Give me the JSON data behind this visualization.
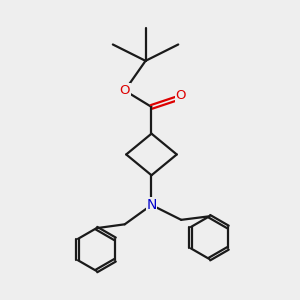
{
  "bg_color": "#eeeeee",
  "bond_color": "#1a1a1a",
  "O_color": "#dd0000",
  "N_color": "#0000cc",
  "lw": 1.6,
  "figsize": [
    3.0,
    3.0
  ],
  "dpi": 100,
  "xlim": [
    0,
    10
  ],
  "ylim": [
    0,
    10
  ]
}
